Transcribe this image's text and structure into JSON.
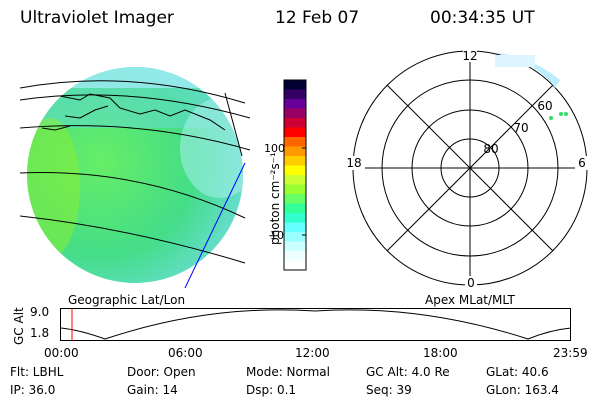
{
  "header": {
    "title": "Ultraviolet Imager",
    "date": "12 Feb 07",
    "time": "00:34:35 UT"
  },
  "colorbar": {
    "unit_label": "photon cm⁻²s⁻¹",
    "ticks": [
      {
        "label": "100",
        "value": 100
      },
      {
        "label": "10",
        "value": 10
      }
    ],
    "colors": [
      "#000033",
      "#330066",
      "#660099",
      "#990066",
      "#cc0033",
      "#ff0000",
      "#ff6600",
      "#ff9900",
      "#ffcc00",
      "#ffff00",
      "#ccff33",
      "#99ff33",
      "#66ff66",
      "#33ff99",
      "#33ffcc",
      "#66ffff",
      "#99ffff",
      "#ccffff",
      "#eeffff",
      "#ffffff"
    ]
  },
  "left_panel": {
    "caption": "Geographic Lat/Lon"
  },
  "polar_plot": {
    "caption": "Apex MLat/MLT",
    "mlt_labels": {
      "top": "12",
      "bottom": "0",
      "left": "18",
      "right": "6"
    },
    "lat_labels": [
      "60",
      "70",
      "80"
    ]
  },
  "altitude_plot": {
    "y_label": "GC Alt",
    "y_ticks": [
      "9.0",
      "1.8"
    ],
    "x_ticks": [
      "00:00",
      "06:00",
      "12:00",
      "18:00",
      "23:59"
    ]
  },
  "info": {
    "flt": "Flt: LBHL",
    "ip": "IP: 36.0",
    "door": "Door: Open",
    "gain": "Gain: 14",
    "mode": "Mode: Normal",
    "dsp": "Dsp:    0.1",
    "gc_alt": "GC Alt: 4.0 Re",
    "seq": "Seq: 39",
    "glat": "GLat:  40.6",
    "glon": "GLon: 163.4"
  }
}
